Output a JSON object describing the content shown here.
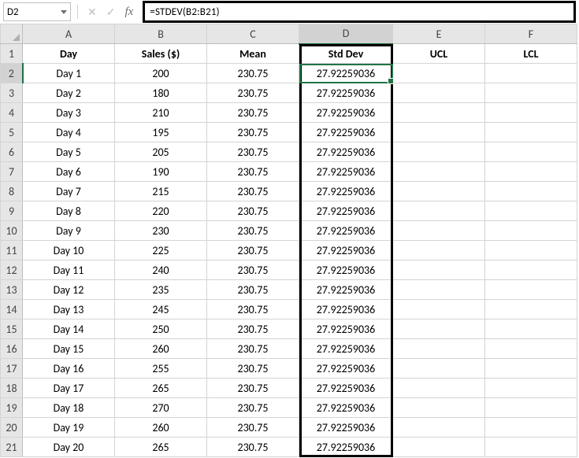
{
  "nameBox": {
    "value": "D2"
  },
  "formulaBar": {
    "formula": "=STDEV(B2:B21)"
  },
  "fbButtons": {
    "cancel": "✕",
    "enter": "✓"
  },
  "fxLabel": "fx",
  "columns": [
    "A",
    "B",
    "C",
    "D",
    "E",
    "F"
  ],
  "colWidths": {
    "A": 117,
    "B": 117,
    "C": 117,
    "D": 119,
    "E": 117,
    "F": 117
  },
  "activeCol": "D",
  "activeRow": 2,
  "headerRow": {
    "A": "Day",
    "B": "Sales ($)",
    "C": "Mean",
    "D": "Std Dev",
    "E": "UCL",
    "F": "LCL"
  },
  "rows": [
    {
      "A": "Day 1",
      "B": "200",
      "C": "230.75",
      "D": "27.92259036",
      "E": "",
      "F": ""
    },
    {
      "A": "Day 2",
      "B": "180",
      "C": "230.75",
      "D": "27.92259036",
      "E": "",
      "F": ""
    },
    {
      "A": "Day 3",
      "B": "210",
      "C": "230.75",
      "D": "27.92259036",
      "E": "",
      "F": ""
    },
    {
      "A": "Day 4",
      "B": "195",
      "C": "230.75",
      "D": "27.92259036",
      "E": "",
      "F": ""
    },
    {
      "A": "Day 5",
      "B": "205",
      "C": "230.75",
      "D": "27.92259036",
      "E": "",
      "F": ""
    },
    {
      "A": "Day 6",
      "B": "190",
      "C": "230.75",
      "D": "27.92259036",
      "E": "",
      "F": ""
    },
    {
      "A": "Day 7",
      "B": "215",
      "C": "230.75",
      "D": "27.92259036",
      "E": "",
      "F": ""
    },
    {
      "A": "Day 8",
      "B": "220",
      "C": "230.75",
      "D": "27.92259036",
      "E": "",
      "F": ""
    },
    {
      "A": "Day 9",
      "B": "230",
      "C": "230.75",
      "D": "27.92259036",
      "E": "",
      "F": ""
    },
    {
      "A": "Day 10",
      "B": "225",
      "C": "230.75",
      "D": "27.92259036",
      "E": "",
      "F": ""
    },
    {
      "A": "Day 11",
      "B": "240",
      "C": "230.75",
      "D": "27.92259036",
      "E": "",
      "F": ""
    },
    {
      "A": "Day 12",
      "B": "235",
      "C": "230.75",
      "D": "27.92259036",
      "E": "",
      "F": ""
    },
    {
      "A": "Day 13",
      "B": "245",
      "C": "230.75",
      "D": "27.92259036",
      "E": "",
      "F": ""
    },
    {
      "A": "Day 14",
      "B": "250",
      "C": "230.75",
      "D": "27.92259036",
      "E": "",
      "F": ""
    },
    {
      "A": "Day 15",
      "B": "260",
      "C": "230.75",
      "D": "27.92259036",
      "E": "",
      "F": ""
    },
    {
      "A": "Day 16",
      "B": "255",
      "C": "230.75",
      "D": "27.92259036",
      "E": "",
      "F": ""
    },
    {
      "A": "Day 17",
      "B": "265",
      "C": "230.75",
      "D": "27.92259036",
      "E": "",
      "F": ""
    },
    {
      "A": "Day 18",
      "B": "270",
      "C": "230.75",
      "D": "27.92259036",
      "E": "",
      "F": ""
    },
    {
      "A": "Day 19",
      "B": "260",
      "C": "230.75",
      "D": "27.92259036",
      "E": "",
      "F": ""
    },
    {
      "A": "Day 20",
      "B": "265",
      "C": "230.75",
      "D": "27.92259036",
      "E": "",
      "F": ""
    }
  ],
  "colors": {
    "gridBorder": "#d4d4d4",
    "headerBg": "#e6e6e6",
    "headerActiveBg": "#d2d2d2",
    "activeGreen": "#217346",
    "emphasisBox": "#000000"
  }
}
